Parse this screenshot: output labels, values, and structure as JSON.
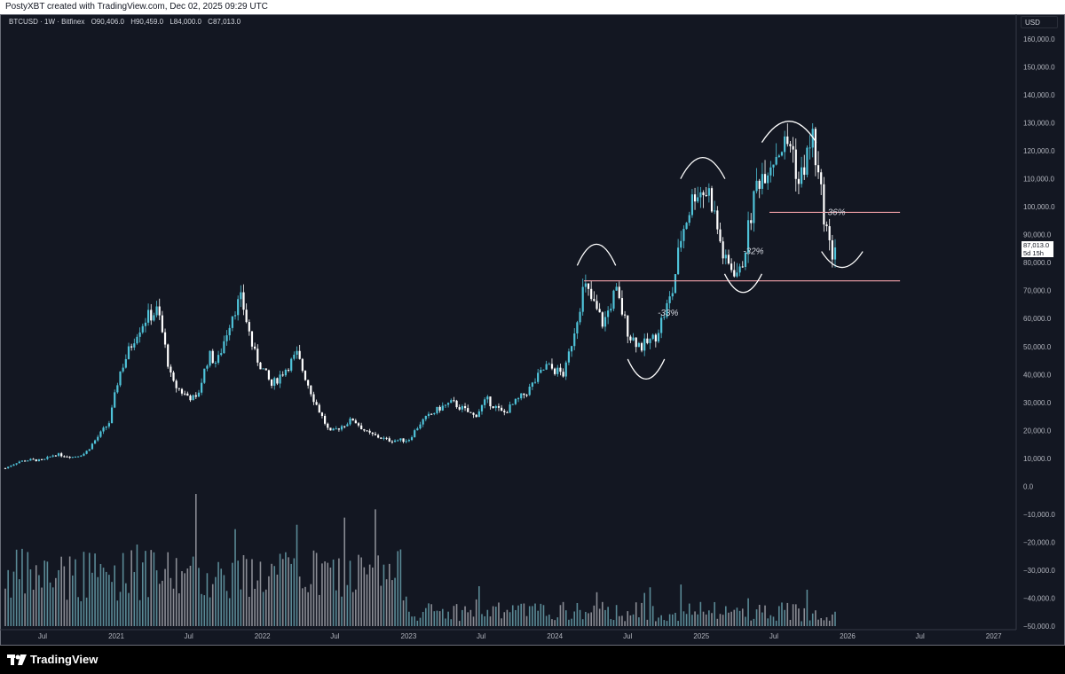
{
  "header": {
    "credit": "PostyXBT created with TradingView.com, Dec 02, 2025 09:29 UTC"
  },
  "legend": {
    "symbol": "BTCUSD · 1W · Bitfinex",
    "open": "O90,406.0",
    "high": "H90,459.0",
    "low": "L84,000.0",
    "close": "C87,013.0"
  },
  "price_scale": {
    "currency": "USD",
    "last_price": "87,013.0",
    "countdown": "5d 15h"
  },
  "footer": {
    "brand": "TradingView"
  },
  "colors": {
    "background": "#131722",
    "bull": "#4fc3d9",
    "bear": "#ffffff",
    "level": "#f2a1a8",
    "grid_text": "#b2b5be"
  },
  "annotations": [
    "-33%",
    "-32%",
    "-36%"
  ],
  "chart_data": {
    "type": "candlestick",
    "title": "",
    "interval": "1W",
    "exchange": "Bitfinex",
    "ylim": [
      -50000,
      165000
    ],
    "y_ticks": [
      "160,000.0",
      "150,000.0",
      "140,000.0",
      "130,000.0",
      "120,000.0",
      "110,000.0",
      "100,000.0",
      "90,000.0",
      "80,000.0",
      "70,000.0",
      "60,000.0",
      "50,000.0",
      "40,000.0",
      "30,000.0",
      "20,000.0",
      "10,000.0",
      "0.0",
      "−10,000.0",
      "−20,000.0",
      "−30,000.0",
      "−40,000.0",
      "−50,000.0"
    ],
    "x_ticks": [
      "Jul",
      "2021",
      "Jul",
      "2022",
      "Jul",
      "2023",
      "Jul",
      "2024",
      "Jul",
      "2025",
      "Jul",
      "2026",
      "Jul",
      "2027"
    ],
    "x_tick_dates": [
      "2020-07-01",
      "2021-01-01",
      "2021-07-01",
      "2022-01-01",
      "2022-07-01",
      "2023-01-01",
      "2023-07-01",
      "2024-01-01",
      "2024-07-01",
      "2025-01-01",
      "2025-07-01",
      "2026-01-01",
      "2026-07-01",
      "2027-01-01"
    ],
    "x_start": "2020-03-30",
    "x_end": "2027-02-15",
    "series_close": [
      [
        "2020-03-30",
        6500
      ],
      [
        "2020-05-01",
        8800
      ],
      [
        "2020-06-01",
        9500
      ],
      [
        "2020-07-01",
        9200
      ],
      [
        "2020-08-01",
        11500
      ],
      [
        "2020-09-15",
        10500
      ],
      [
        "2020-10-15",
        11800
      ],
      [
        "2020-11-15",
        17500
      ],
      [
        "2020-12-15",
        23000
      ],
      [
        "2021-01-08",
        40000
      ],
      [
        "2021-02-20",
        55000
      ],
      [
        "2021-03-15",
        60000
      ],
      [
        "2021-04-15",
        63000
      ],
      [
        "2021-05-20",
        37000
      ],
      [
        "2021-06-20",
        33000
      ],
      [
        "2021-07-20",
        31000
      ],
      [
        "2021-08-20",
        47000
      ],
      [
        "2021-09-10",
        44000
      ],
      [
        "2021-10-20",
        63000
      ],
      [
        "2021-11-10",
        67000
      ],
      [
        "2021-12-10",
        48000
      ],
      [
        "2022-01-24",
        36000
      ],
      [
        "2022-03-28",
        47000
      ],
      [
        "2022-05-10",
        31000
      ],
      [
        "2022-06-18",
        19000
      ],
      [
        "2022-08-15",
        24000
      ],
      [
        "2022-09-20",
        19000
      ],
      [
        "2022-11-10",
        16500
      ],
      [
        "2022-12-31",
        16500
      ],
      [
        "2023-02-01",
        23000
      ],
      [
        "2023-03-20",
        28000
      ],
      [
        "2023-04-20",
        30000
      ],
      [
        "2023-06-15",
        25000
      ],
      [
        "2023-07-15",
        31000
      ],
      [
        "2023-08-25",
        26000
      ],
      [
        "2023-10-25",
        34000
      ],
      [
        "2023-12-10",
        43000
      ],
      [
        "2024-01-25",
        40000
      ],
      [
        "2024-02-28",
        62000
      ],
      [
        "2024-03-14",
        72000
      ],
      [
        "2024-05-01",
        58000
      ],
      [
        "2024-06-01",
        70000
      ],
      [
        "2024-07-05",
        54000
      ],
      [
        "2024-08-05",
        50000
      ],
      [
        "2024-09-06",
        53000
      ],
      [
        "2024-10-20",
        69000
      ],
      [
        "2024-11-12",
        90000
      ],
      [
        "2024-12-17",
        106000
      ],
      [
        "2025-01-22",
        105000
      ],
      [
        "2025-02-28",
        80000
      ],
      [
        "2025-04-08",
        76000
      ],
      [
        "2025-05-20",
        109000
      ],
      [
        "2025-07-14",
        121000
      ],
      [
        "2025-08-14",
        123000
      ],
      [
        "2025-09-01",
        108000
      ],
      [
        "2025-10-06",
        125000
      ],
      [
        "2025-10-20",
        110000
      ],
      [
        "2025-11-21",
        82000
      ],
      [
        "2025-12-02",
        87013
      ]
    ],
    "levels": [
      {
        "price": 73500,
        "from": "2024-03-14",
        "to": "2026-06-01"
      },
      {
        "price": 98000,
        "from": "2025-06-20",
        "to": "2026-06-01"
      }
    ]
  }
}
